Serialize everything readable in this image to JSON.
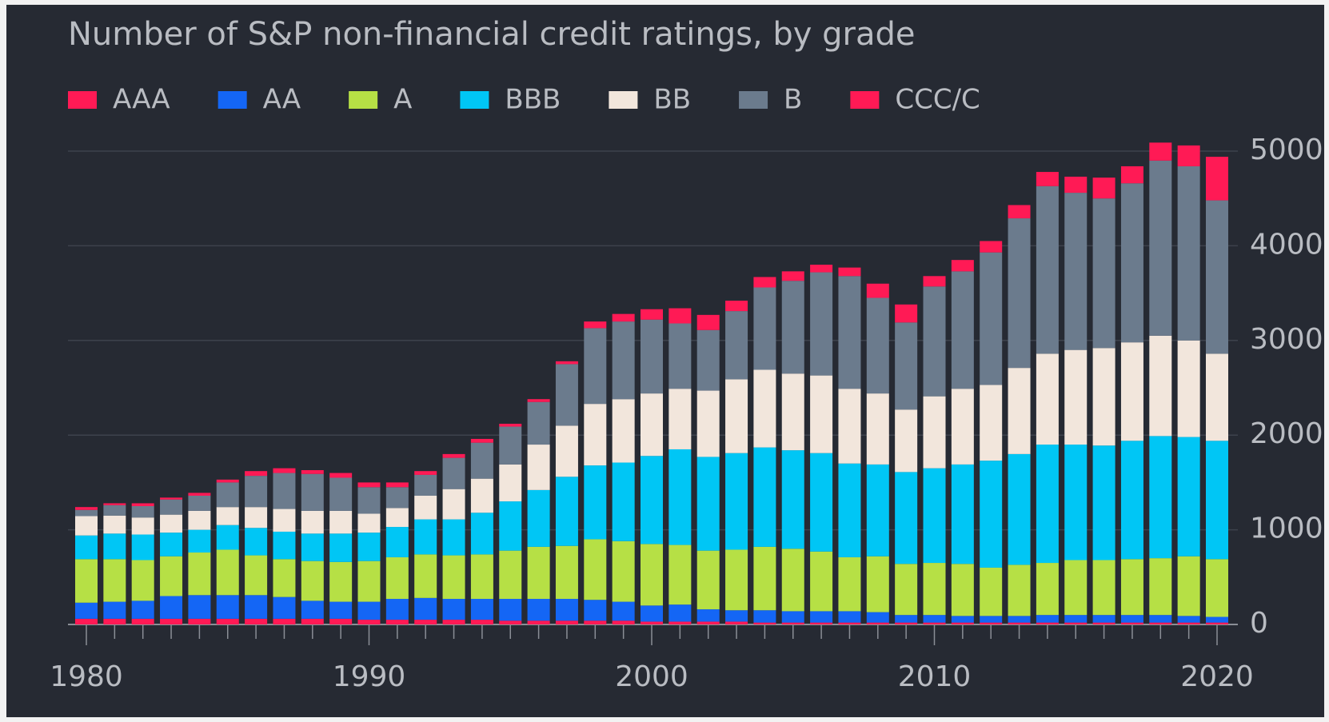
{
  "chart_data": {
    "type": "stacked-bar",
    "title": "Number of S&P non-financial credit ratings, by grade",
    "categories": [
      "1980",
      null,
      null,
      null,
      null,
      null,
      null,
      null,
      null,
      null,
      "1990",
      null,
      null,
      null,
      null,
      null,
      null,
      null,
      null,
      null,
      "2000",
      null,
      null,
      null,
      null,
      null,
      null,
      null,
      null,
      null,
      "2010",
      null,
      null,
      null,
      null,
      null,
      null,
      null,
      null,
      null,
      "2020"
    ],
    "series": [
      {
        "name": "AAA",
        "color": "#ff1a55",
        "values": [
          60,
          60,
          60,
          60,
          60,
          60,
          60,
          60,
          60,
          60,
          50,
          50,
          50,
          50,
          50,
          40,
          40,
          40,
          40,
          40,
          30,
          30,
          30,
          30,
          20,
          20,
          20,
          20,
          20,
          20,
          20,
          20,
          20,
          20,
          20,
          20,
          20,
          20,
          20,
          20,
          20
        ]
      },
      {
        "name": "AA",
        "color": "#1466f5",
        "values": [
          170,
          180,
          190,
          240,
          250,
          250,
          250,
          230,
          190,
          180,
          190,
          220,
          230,
          220,
          220,
          230,
          230,
          230,
          220,
          200,
          170,
          180,
          130,
          120,
          130,
          120,
          120,
          120,
          110,
          80,
          80,
          70,
          70,
          70,
          80,
          80,
          80,
          80,
          80,
          70,
          60
        ]
      },
      {
        "name": "A",
        "color": "#b6e045",
        "values": [
          460,
          450,
          430,
          420,
          450,
          480,
          420,
          400,
          420,
          420,
          430,
          440,
          460,
          460,
          470,
          510,
          550,
          560,
          640,
          640,
          650,
          630,
          620,
          640,
          670,
          660,
          630,
          570,
          590,
          540,
          550,
          550,
          510,
          540,
          550,
          580,
          580,
          590,
          600,
          630,
          610
        ]
      },
      {
        "name": "BBB",
        "color": "#00c6f5",
        "values": [
          250,
          270,
          270,
          250,
          240,
          260,
          290,
          290,
          290,
          300,
          300,
          320,
          370,
          380,
          440,
          520,
          600,
          730,
          780,
          830,
          930,
          1010,
          990,
          1020,
          1050,
          1040,
          1040,
          990,
          970,
          970,
          1000,
          1050,
          1130,
          1170,
          1250,
          1220,
          1210,
          1250,
          1290,
          1260,
          1250
        ]
      },
      {
        "name": "BB",
        "color": "#f2e6dc",
        "values": [
          205,
          190,
          180,
          190,
          200,
          190,
          220,
          240,
          240,
          240,
          200,
          200,
          250,
          320,
          360,
          390,
          480,
          540,
          650,
          670,
          660,
          640,
          700,
          780,
          820,
          810,
          820,
          790,
          750,
          660,
          760,
          800,
          800,
          910,
          960,
          1000,
          1030,
          1040,
          1060,
          1020,
          920
        ]
      },
      {
        "name": "B",
        "color": "#6b7b8d",
        "values": [
          65,
          110,
          120,
          160,
          160,
          260,
          330,
          380,
          390,
          350,
          280,
          220,
          220,
          330,
          380,
          400,
          450,
          650,
          800,
          820,
          780,
          690,
          640,
          720,
          870,
          980,
          1090,
          1190,
          1010,
          920,
          1160,
          1240,
          1400,
          1580,
          1770,
          1660,
          1580,
          1680,
          1850,
          1840,
          1620
        ]
      },
      {
        "name": "CCC/C",
        "color": "#ff1a55",
        "values": [
          30,
          20,
          30,
          20,
          30,
          30,
          50,
          50,
          40,
          50,
          50,
          50,
          40,
          40,
          40,
          30,
          30,
          30,
          70,
          80,
          110,
          160,
          160,
          110,
          110,
          100,
          80,
          90,
          150,
          190,
          110,
          120,
          120,
          140,
          150,
          170,
          220,
          180,
          190,
          220,
          460
        ]
      }
    ],
    "ylim": [
      0,
      5000
    ],
    "yticks": [
      0,
      1000,
      2000,
      3000,
      4000,
      5000
    ],
    "grid": true
  }
}
